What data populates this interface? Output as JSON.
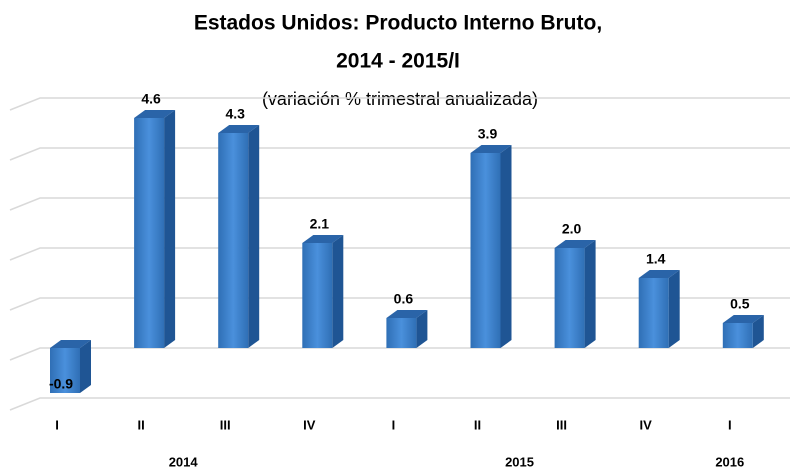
{
  "chart_data": {
    "type": "bar3d",
    "title": [
      "Estados Unidos: Producto Interno Bruto,",
      "2014 - 2015/I"
    ],
    "subtitle": "(variación % trimestral anualizada)",
    "categories": [
      "I",
      "II",
      "III",
      "IV",
      "I",
      "II",
      "III",
      "IV",
      "I"
    ],
    "group_labels": [
      "2014",
      "2015",
      "2016"
    ],
    "values": [
      -0.9,
      4.6,
      4.3,
      2.1,
      0.6,
      3.9,
      2.0,
      1.4,
      0.5
    ],
    "value_labels": [
      "-0.9",
      "4.6",
      "4.3",
      "2.1",
      "0.6",
      "3.9",
      "2.0",
      "1.4",
      "0.5"
    ],
    "color": "#3b7fc6",
    "ylim": [
      -1,
      5
    ],
    "yticks": [
      -1,
      0,
      1,
      2,
      3,
      4,
      5
    ],
    "grid": true
  }
}
